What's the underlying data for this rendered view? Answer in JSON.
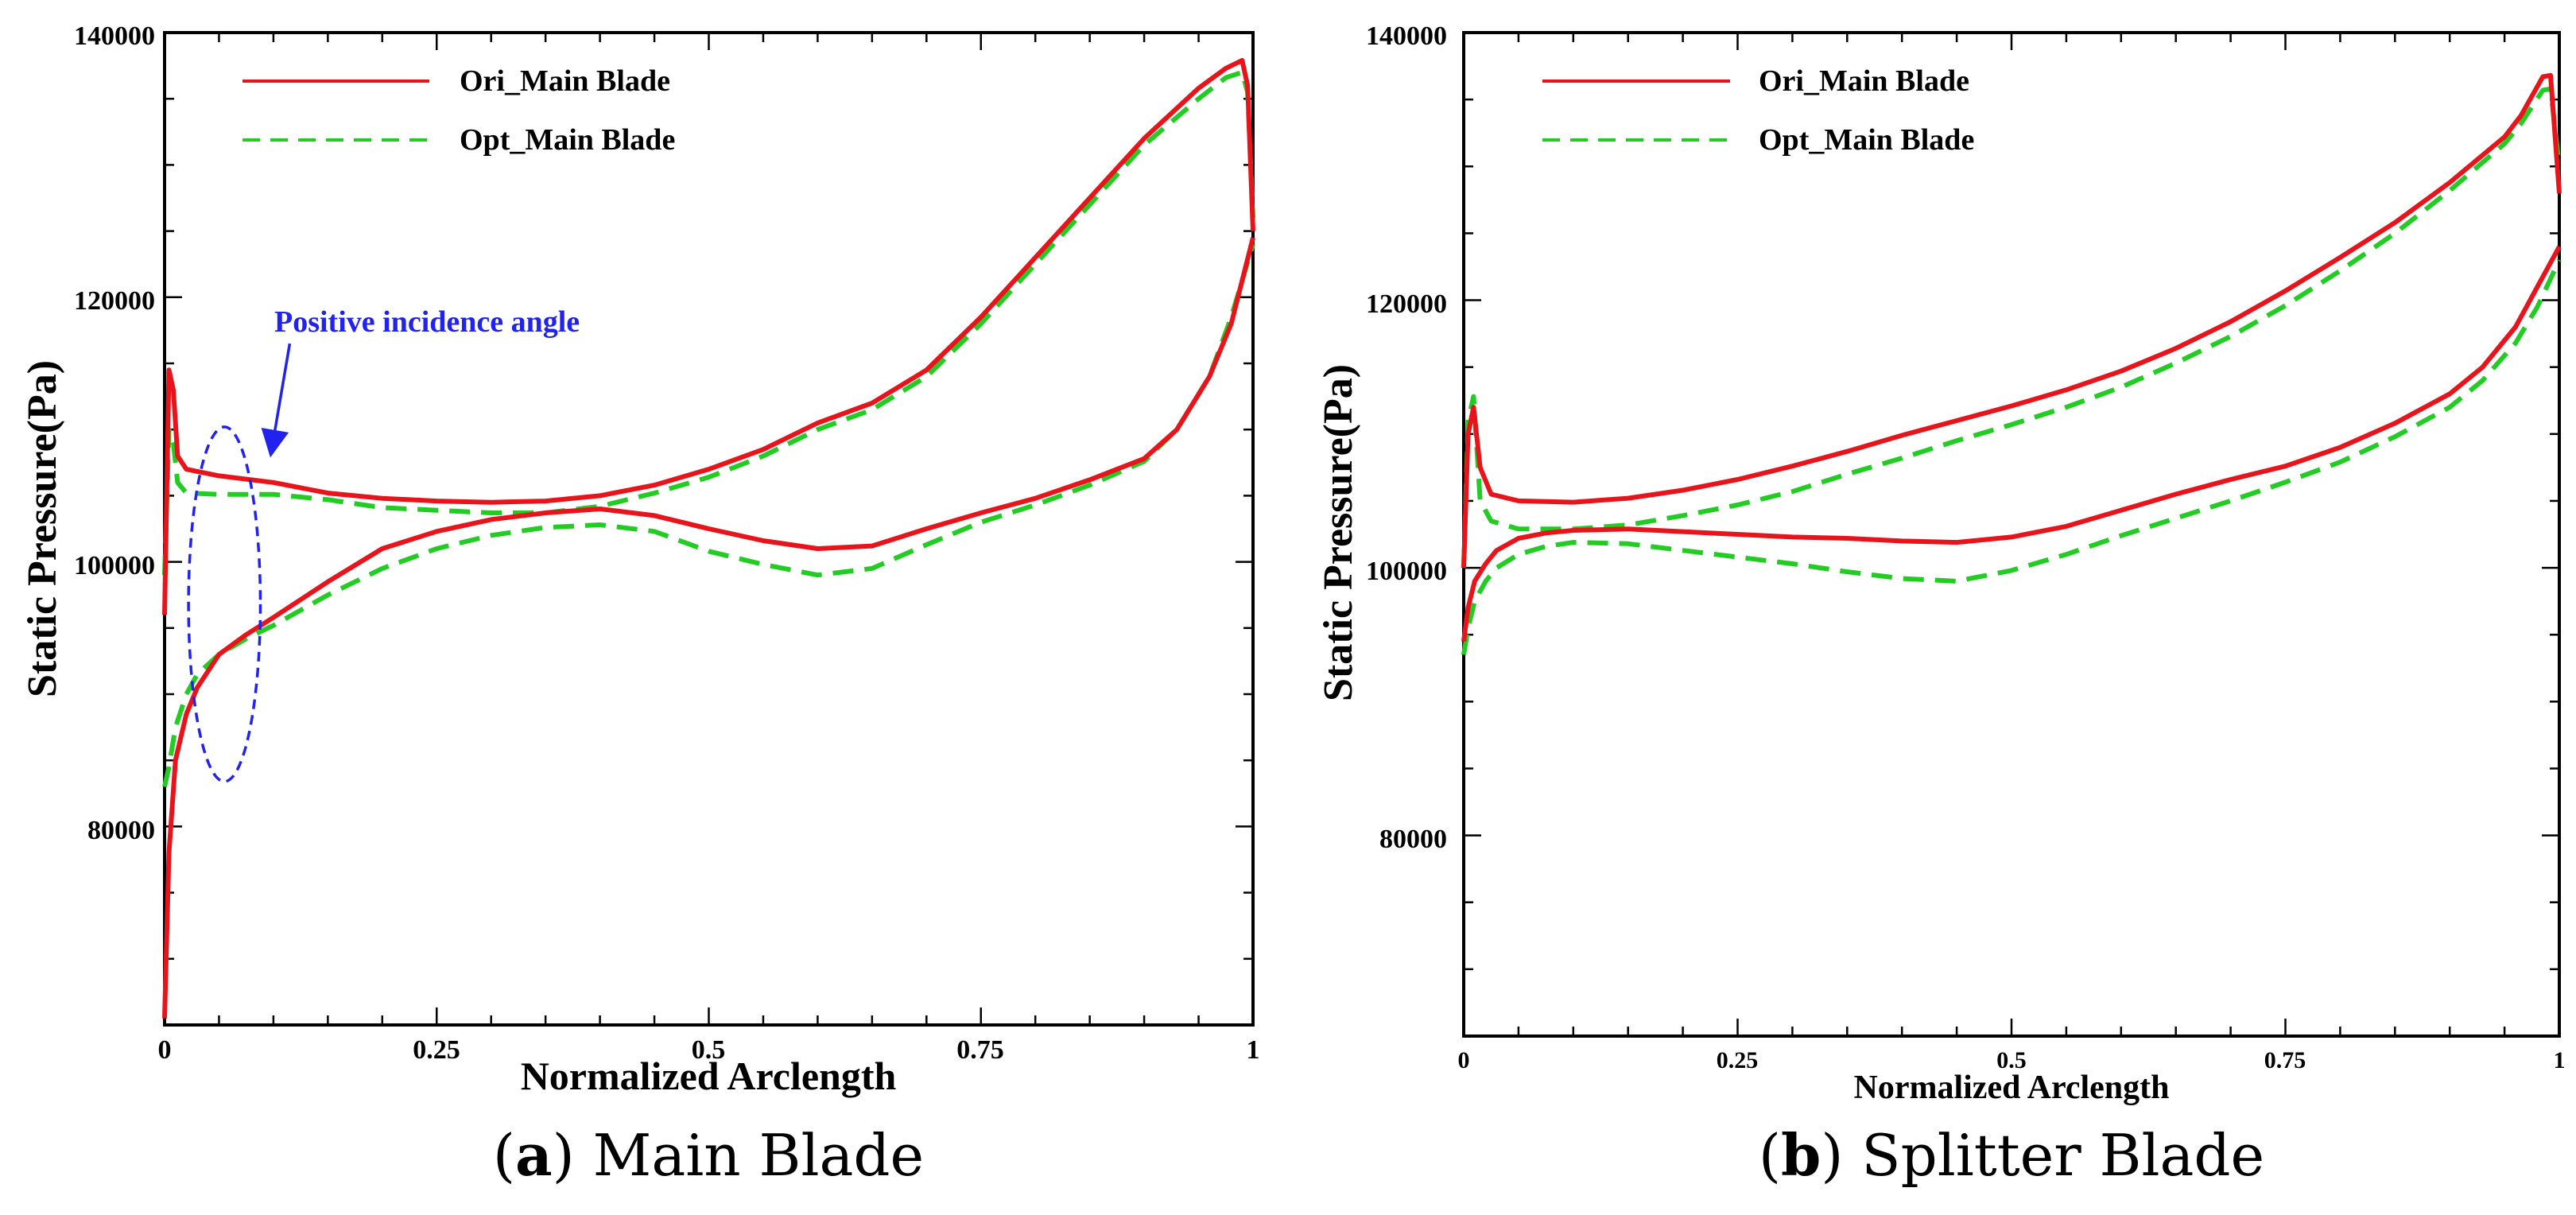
{
  "colors": {
    "ori": "#e8141c",
    "opt": "#22cc22",
    "annotation": "#2222ee",
    "axis": "#000000"
  },
  "chart_data": [
    {
      "type": "line",
      "caption": {
        "letter": "a",
        "text": "Main Blade",
        "open": "(",
        "close": ")"
      },
      "xlabel": "Normalized Arclength",
      "ylabel": "Static Pressure(Pa)",
      "xlim": [
        0,
        1
      ],
      "ylim": [
        65000,
        140000
      ],
      "xticks": [
        0,
        0.25,
        0.5,
        0.75,
        1
      ],
      "xtick_labels": [
        "0",
        "0.25",
        "0.5",
        "0.75",
        "1"
      ],
      "yticks": [
        80000,
        100000,
        120000,
        140000
      ],
      "ytick_labels": [
        "80000",
        "100000",
        "120000",
        "140000"
      ],
      "legend": [
        "Ori_Main Blade",
        "Opt_Main Blade"
      ],
      "annotation": {
        "text": "Positive incidence angle",
        "ellipse_center": [
          0.055,
          96800
        ],
        "ellipse_rx": 0.033,
        "ellipse_ry": 13400,
        "arrow_from": [
          0.115,
          116500
        ],
        "arrow_to": [
          0.098,
          108300
        ]
      },
      "series": [
        {
          "name": "Ori_Main Blade",
          "style": "solid",
          "upper": {
            "x": [
              0,
              0.004,
              0.008,
              0.012,
              0.02,
              0.05,
              0.1,
              0.15,
              0.2,
              0.25,
              0.3,
              0.35,
              0.4,
              0.45,
              0.5,
              0.55,
              0.6,
              0.65,
              0.7,
              0.75,
              0.8,
              0.85,
              0.9,
              0.95,
              0.975,
              0.99,
              0.995,
              1.0
            ],
            "y": [
              96000,
              114500,
              113000,
              108000,
              107000,
              106500,
              106000,
              105200,
              104800,
              104600,
              104500,
              104600,
              105000,
              105800,
              107000,
              108500,
              110500,
              112000,
              114500,
              118500,
              123000,
              127500,
              132000,
              135800,
              137300,
              137900,
              136000,
              125000
            ]
          },
          "lower": {
            "x": [
              0,
              0.004,
              0.01,
              0.02,
              0.03,
              0.05,
              0.075,
              0.1,
              0.15,
              0.2,
              0.25,
              0.3,
              0.35,
              0.4,
              0.45,
              0.5,
              0.55,
              0.6,
              0.65,
              0.7,
              0.75,
              0.8,
              0.85,
              0.9,
              0.93,
              0.96,
              0.98,
              1.0
            ],
            "y": [
              65500,
              78000,
              85000,
              88500,
              90500,
              93000,
              94500,
              95800,
              98500,
              101000,
              102300,
              103200,
              103700,
              104000,
              103500,
              102500,
              101600,
              101000,
              101200,
              102500,
              103700,
              104800,
              106200,
              107800,
              110000,
              114000,
              118000,
              124500
            ]
          }
        },
        {
          "name": "Opt_Main Blade",
          "style": "dashed",
          "upper": {
            "x": [
              0,
              0.004,
              0.008,
              0.012,
              0.02,
              0.05,
              0.1,
              0.15,
              0.2,
              0.25,
              0.3,
              0.35,
              0.4,
              0.45,
              0.5,
              0.55,
              0.6,
              0.65,
              0.7,
              0.75,
              0.8,
              0.85,
              0.9,
              0.95,
              0.975,
              0.99,
              0.995,
              1.0
            ],
            "y": [
              99000,
              110000,
              109000,
              106000,
              105200,
              105100,
              105100,
              104700,
              104100,
              103900,
              103700,
              103700,
              104200,
              105200,
              106400,
              108000,
              110000,
              111500,
              114000,
              118000,
              122500,
              127000,
              131500,
              135000,
              136600,
              137000,
              135500,
              126000
            ]
          },
          "lower": {
            "x": [
              0,
              0.004,
              0.01,
              0.02,
              0.03,
              0.05,
              0.075,
              0.1,
              0.15,
              0.2,
              0.25,
              0.3,
              0.35,
              0.4,
              0.45,
              0.5,
              0.55,
              0.6,
              0.65,
              0.7,
              0.75,
              0.8,
              0.85,
              0.9,
              0.93,
              0.96,
              0.98,
              1.0
            ],
            "y": [
              83000,
              84500,
              87500,
              90000,
              91500,
              93000,
              94200,
              95200,
              97500,
              99500,
              101000,
              102000,
              102600,
              102800,
              102300,
              100800,
              99800,
              99000,
              99500,
              101300,
              103000,
              104300,
              105800,
              107600,
              110000,
              114000,
              118500,
              124000
            ]
          }
        }
      ]
    },
    {
      "type": "line",
      "caption": {
        "letter": "b",
        "text": "Splitter Blade",
        "open": "(",
        "close": ")"
      },
      "xlabel": "Normalized Arclength",
      "ylabel": "Static Pressure(Pa)",
      "xlim": [
        0,
        1
      ],
      "ylim": [
        65000,
        140000
      ],
      "xticks": [
        0,
        0.25,
        0.5,
        0.75,
        1
      ],
      "xtick_labels": [
        "0",
        "0.25",
        "0.5",
        "0.75",
        "1"
      ],
      "yticks": [
        80000,
        100000,
        120000,
        140000
      ],
      "ytick_labels": [
        "80000",
        "100000",
        "120000",
        "140000"
      ],
      "legend": [
        "Ori_Main Blade",
        "Opt_Main Blade"
      ],
      "series": [
        {
          "name": "Ori_Main Blade",
          "style": "solid",
          "upper": {
            "x": [
              0,
              0.004,
              0.009,
              0.015,
              0.025,
              0.05,
              0.1,
              0.15,
              0.2,
              0.25,
              0.3,
              0.35,
              0.4,
              0.45,
              0.5,
              0.55,
              0.6,
              0.65,
              0.7,
              0.75,
              0.8,
              0.85,
              0.9,
              0.95,
              0.965,
              0.985,
              0.992,
              1.0
            ],
            "y": [
              100000,
              110000,
              112000,
              107500,
              105500,
              105000,
              104900,
              105200,
              105800,
              106600,
              107600,
              108700,
              109900,
              111000,
              112100,
              113300,
              114700,
              116400,
              118400,
              120700,
              123200,
              125800,
              128800,
              132200,
              133800,
              136700,
              136800,
              128000
            ]
          },
          "lower": {
            "x": [
              0,
              0.004,
              0.01,
              0.02,
              0.03,
              0.05,
              0.075,
              0.1,
              0.15,
              0.2,
              0.25,
              0.3,
              0.35,
              0.4,
              0.45,
              0.5,
              0.55,
              0.6,
              0.65,
              0.7,
              0.75,
              0.8,
              0.85,
              0.9,
              0.93,
              0.96,
              0.98,
              1.0
            ],
            "y": [
              94500,
              97000,
              99000,
              100300,
              101300,
              102200,
              102600,
              102800,
              102900,
              102700,
              102500,
              102300,
              102200,
              102000,
              101900,
              102300,
              103100,
              104300,
              105500,
              106600,
              107600,
              109000,
              110800,
              113000,
              115000,
              118000,
              121000,
              124000
            ]
          }
        },
        {
          "name": "Opt_Main Blade",
          "style": "dashed",
          "upper": {
            "x": [
              0,
              0.004,
              0.009,
              0.015,
              0.025,
              0.05,
              0.1,
              0.15,
              0.2,
              0.25,
              0.3,
              0.35,
              0.4,
              0.45,
              0.5,
              0.55,
              0.6,
              0.65,
              0.7,
              0.75,
              0.8,
              0.85,
              0.9,
              0.95,
              0.965,
              0.985,
              0.992,
              1.0
            ],
            "y": [
              100000,
              111000,
              112800,
              105000,
              103500,
              102900,
              102900,
              103200,
              103900,
              104700,
              105700,
              107000,
              108200,
              109500,
              110700,
              112000,
              113500,
              115300,
              117300,
              119600,
              122200,
              125000,
              128200,
              131700,
              133200,
              135700,
              135800,
              130000
            ]
          },
          "lower": {
            "x": [
              0,
              0.004,
              0.01,
              0.02,
              0.03,
              0.05,
              0.075,
              0.1,
              0.15,
              0.2,
              0.25,
              0.3,
              0.35,
              0.4,
              0.45,
              0.5,
              0.55,
              0.6,
              0.65,
              0.7,
              0.75,
              0.8,
              0.85,
              0.9,
              0.93,
              0.96,
              0.98,
              1.0
            ],
            "y": [
              93500,
              95500,
              97500,
              99000,
              100000,
              101000,
              101600,
              101900,
              101800,
              101300,
              100800,
              100300,
              99700,
              99200,
              99000,
              99800,
              101000,
              102400,
              103700,
              105000,
              106400,
              107900,
              109800,
              112000,
              114000,
              116800,
              119500,
              123000
            ]
          }
        }
      ]
    }
  ]
}
